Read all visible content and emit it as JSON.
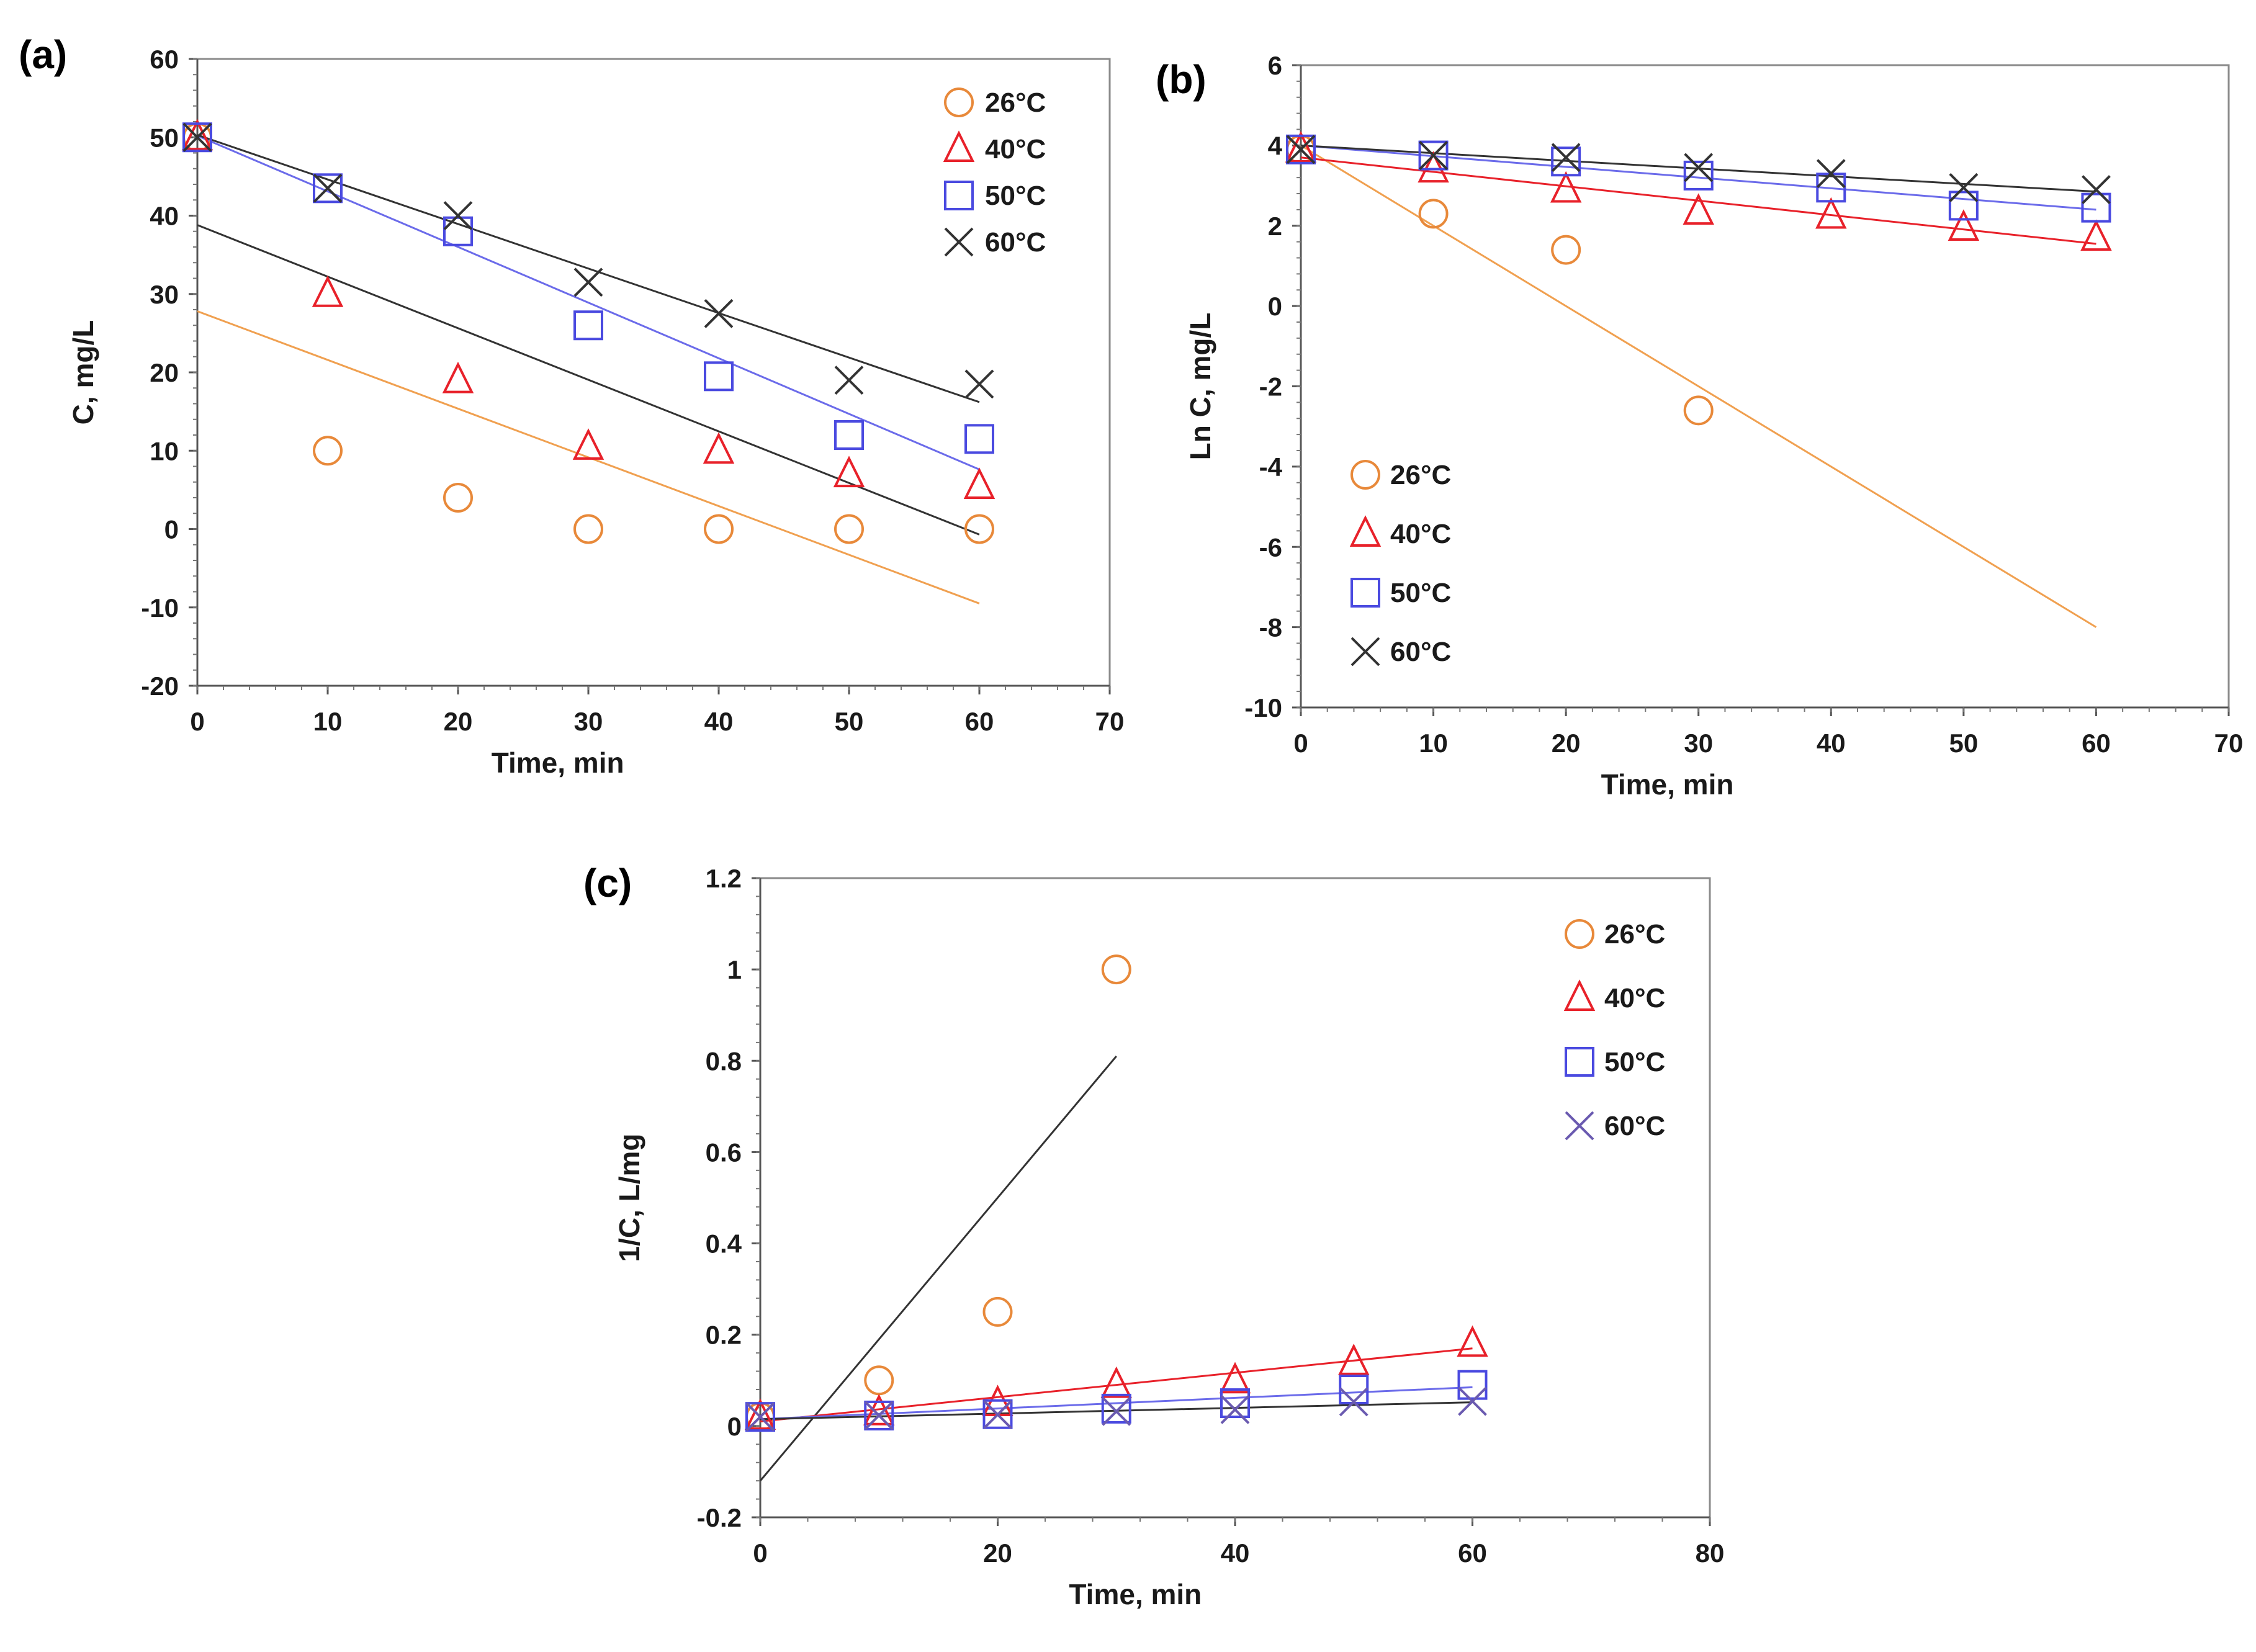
{
  "chart_data": [
    {
      "type": "scatter",
      "panel_label": "(a)",
      "xlabel": "Time, min",
      "ylabel": "C, mg/L",
      "xlim": [
        0,
        70
      ],
      "ylim": [
        -20,
        60
      ],
      "xticks": [
        0,
        10,
        20,
        30,
        40,
        50,
        60,
        70
      ],
      "yticks": [
        -20,
        -10,
        0,
        10,
        20,
        30,
        40,
        50,
        60
      ],
      "tick_labels_x": [
        "0",
        "10",
        "20",
        "30",
        "40",
        "50",
        "60",
        "70"
      ],
      "tick_labels_y": [
        "-20",
        "-10",
        "0",
        "10",
        "20",
        "30",
        "40",
        "50",
        "60"
      ],
      "legend_position": "top-right",
      "series": [
        {
          "name": "26°C",
          "marker": "circle",
          "color": "#e8893a",
          "line_color": "#f0a050",
          "x": [
            0,
            10,
            20,
            30,
            40,
            50,
            60
          ],
          "y": [
            50,
            10,
            4,
            0,
            0,
            0,
            0
          ],
          "trendline": [
            [
              0,
              27.8
            ],
            [
              60,
              -9.5
            ]
          ]
        },
        {
          "name": "40°C",
          "marker": "triangle",
          "color": "#e8212a",
          "line_color": "#333333",
          "x": [
            0,
            10,
            20,
            30,
            40,
            50,
            60
          ],
          "y": [
            50,
            30,
            19,
            10.5,
            10,
            7,
            5.5
          ],
          "trendline": [
            [
              0,
              38.8
            ],
            [
              60,
              -0.7
            ]
          ]
        },
        {
          "name": "50°C",
          "marker": "square",
          "color": "#4a4ae0",
          "line_color": "#6b6bea",
          "x": [
            0,
            10,
            20,
            30,
            40,
            50,
            60
          ],
          "y": [
            50,
            43.5,
            38,
            26,
            19.5,
            12,
            11.5
          ],
          "trendline": [
            [
              0,
              50.2
            ],
            [
              60,
              7.6
            ]
          ]
        },
        {
          "name": "60°C",
          "marker": "cross",
          "color": "#333333",
          "line_color": "#333333",
          "x": [
            0,
            10,
            20,
            30,
            40,
            50,
            60
          ],
          "y": [
            50,
            43.5,
            40,
            31.5,
            27.5,
            19,
            18.5
          ],
          "trendline": [
            [
              0,
              50.3
            ],
            [
              60,
              16.2
            ]
          ]
        }
      ]
    },
    {
      "type": "scatter",
      "panel_label": "(b)",
      "xlabel": "Time, min",
      "ylabel": "Ln C, mg/L",
      "xlim": [
        0,
        70
      ],
      "ylim": [
        -10,
        6
      ],
      "xticks": [
        0,
        10,
        20,
        30,
        40,
        50,
        60,
        70
      ],
      "yticks": [
        -10,
        -8,
        -6,
        -4,
        -2,
        0,
        2,
        4,
        6
      ],
      "tick_labels_x": [
        "0",
        "10",
        "20",
        "30",
        "40",
        "50",
        "60",
        "70"
      ],
      "tick_labels_y": [
        "-10",
        "-8",
        "-6",
        "-4",
        "-2",
        "0",
        "2",
        "4",
        "6"
      ],
      "legend_position": "bottom-left",
      "series": [
        {
          "name": "26°C",
          "marker": "circle",
          "color": "#e8893a",
          "line_color": "#f0a050",
          "x": [
            0,
            10,
            20,
            30
          ],
          "y": [
            3.9,
            2.3,
            1.4,
            -2.6
          ],
          "trendline": [
            [
              0,
              4.0
            ],
            [
              60,
              -8.0
            ]
          ]
        },
        {
          "name": "40°C",
          "marker": "triangle",
          "color": "#e8212a",
          "line_color": "#e8212a",
          "x": [
            0,
            10,
            20,
            30,
            40,
            50,
            60
          ],
          "y": [
            3.9,
            3.4,
            2.9,
            2.35,
            2.25,
            1.95,
            1.7
          ],
          "trendline": [
            [
              0,
              3.7
            ],
            [
              60,
              1.55
            ]
          ]
        },
        {
          "name": "50°C",
          "marker": "square",
          "color": "#4a4ae0",
          "line_color": "#6b6bea",
          "x": [
            0,
            10,
            20,
            30,
            40,
            50,
            60
          ],
          "y": [
            3.9,
            3.75,
            3.6,
            3.25,
            2.95,
            2.5,
            2.45
          ],
          "trendline": [
            [
              0,
              4.0
            ],
            [
              60,
              2.4
            ]
          ]
        },
        {
          "name": "60°C",
          "marker": "cross",
          "color": "#333333",
          "line_color": "#333333",
          "x": [
            0,
            10,
            20,
            30,
            40,
            50,
            60
          ],
          "y": [
            3.9,
            3.75,
            3.7,
            3.45,
            3.3,
            2.95,
            2.9
          ],
          "trendline": [
            [
              0,
              4.0
            ],
            [
              60,
              2.85
            ]
          ]
        }
      ]
    },
    {
      "type": "scatter",
      "panel_label": "(c)",
      "xlabel": "Time, min",
      "ylabel": "1/C, L/mg",
      "xlim": [
        0,
        80
      ],
      "ylim": [
        -0.2,
        1.2
      ],
      "xticks": [
        0,
        20,
        40,
        60,
        80
      ],
      "yticks": [
        -0.2,
        0,
        0.2,
        0.4,
        0.6,
        0.8,
        1.0,
        1.2
      ],
      "tick_labels_x": [
        "0",
        "20",
        "40",
        "60",
        "80"
      ],
      "tick_labels_y": [
        "-0.2",
        "0",
        "0.2",
        "0.4",
        "0.6",
        "0.8",
        "1",
        "1.2"
      ],
      "legend_position": "top-right",
      "series": [
        {
          "name": "26°C",
          "marker": "circle",
          "color": "#e8893a",
          "line_color": "#333333",
          "x": [
            0,
            10,
            20,
            30
          ],
          "y": [
            0.02,
            0.1,
            0.25,
            1.0
          ],
          "trendline": [
            [
              0,
              -0.12
            ],
            [
              30,
              0.81
            ]
          ]
        },
        {
          "name": "40°C",
          "marker": "triangle",
          "color": "#e8212a",
          "line_color": "#e8212a",
          "x": [
            0,
            10,
            20,
            30,
            40,
            50,
            60
          ],
          "y": [
            0.02,
            0.03,
            0.05,
            0.09,
            0.1,
            0.14,
            0.18
          ],
          "trendline": [
            [
              0,
              0.01
            ],
            [
              60,
              0.17
            ]
          ]
        },
        {
          "name": "50°C",
          "marker": "square",
          "color": "#4a4ae0",
          "line_color": "#6b6bea",
          "x": [
            0,
            10,
            20,
            30,
            40,
            50,
            60
          ],
          "y": [
            0.02,
            0.023,
            0.026,
            0.038,
            0.05,
            0.08,
            0.09
          ],
          "trendline": [
            [
              0,
              0.015
            ],
            [
              60,
              0.085
            ]
          ]
        },
        {
          "name": "60°C",
          "marker": "cross",
          "color": "#6a5ab0",
          "line_color": "#333333",
          "x": [
            0,
            10,
            20,
            30,
            40,
            50,
            60
          ],
          "y": [
            0.02,
            0.023,
            0.025,
            0.032,
            0.036,
            0.053,
            0.054
          ],
          "trendline": [
            [
              0,
              0.015
            ],
            [
              60,
              0.052
            ]
          ]
        }
      ]
    }
  ]
}
